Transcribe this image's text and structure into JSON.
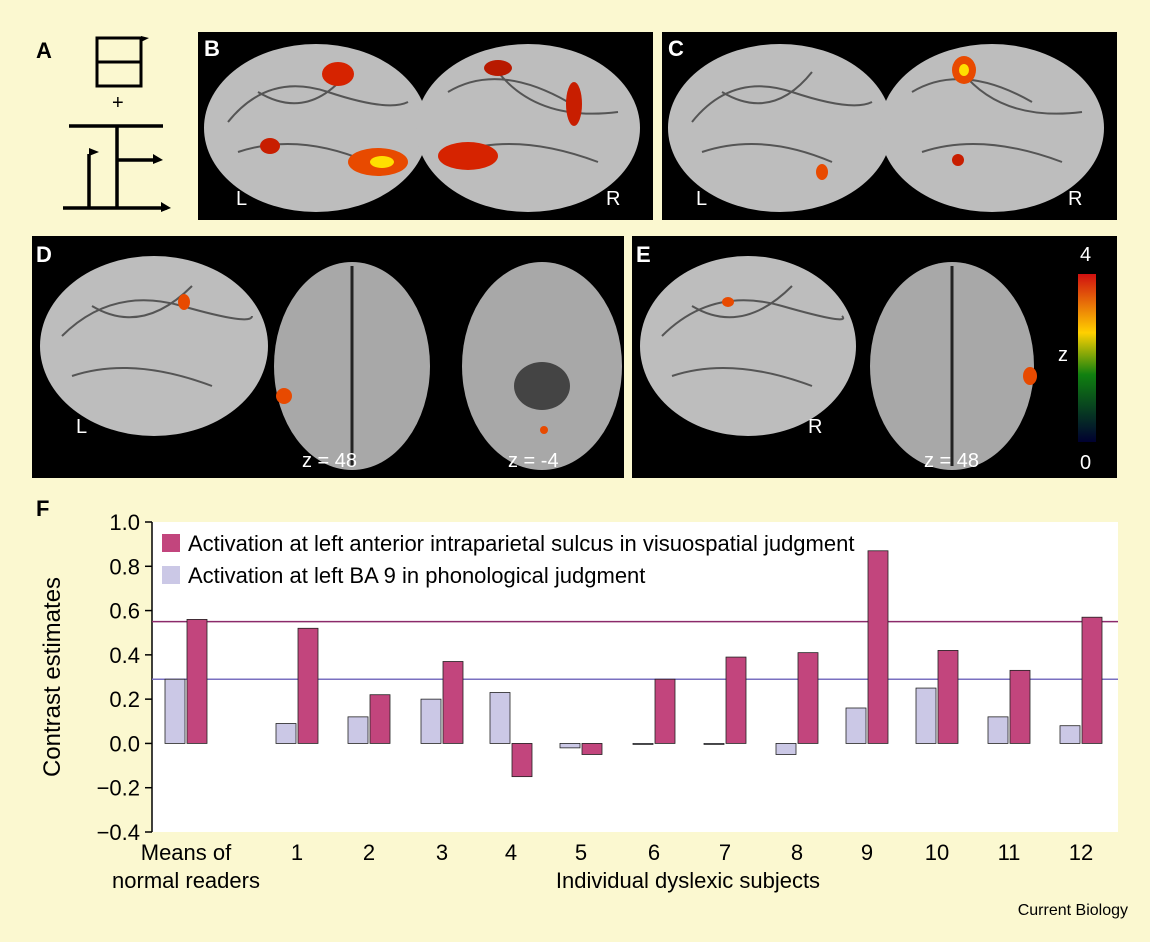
{
  "panels": {
    "a": {
      "letter": "A",
      "plus": "+"
    },
    "b": {
      "letter": "B",
      "left_label": "L",
      "right_label": "R"
    },
    "c": {
      "letter": "C",
      "left_label": "L",
      "right_label": "R"
    },
    "d": {
      "letter": "D",
      "left_label": "L",
      "slice1": "z = 48",
      "slice2": "z = -4"
    },
    "e": {
      "letter": "E",
      "right_label": "R",
      "slice1": "z = 48",
      "colorbar": {
        "max": "4",
        "min": "0",
        "label": "z"
      }
    },
    "f": {
      "letter": "F"
    }
  },
  "credit": "Current Biology",
  "colors": {
    "series_visuospatial": "#c2457d",
    "series_phonological": "#cbc8e6",
    "ref_line_visuospatial": "#8b2a6a",
    "ref_line_phonological": "#7a70c0",
    "background": "#fbf8d0"
  },
  "chart_data": {
    "type": "bar",
    "categories": [
      "Means of\nnormal readers",
      "1",
      "2",
      "3",
      "4",
      "5",
      "6",
      "7",
      "8",
      "9",
      "10",
      "11",
      "12"
    ],
    "xlabel": "Individual dyslexic subjects",
    "ylabel": "Contrast estimates",
    "ylim": [
      -0.4,
      1.0
    ],
    "yticks": [
      "1.0",
      "0.8",
      "0.6",
      "0.4",
      "0.2",
      "0.0",
      "−0.2",
      "−0.4"
    ],
    "ytick_values": [
      1.0,
      0.8,
      0.6,
      0.4,
      0.2,
      0.0,
      -0.2,
      -0.4
    ],
    "legend_position": "top-left",
    "series": [
      {
        "name": "Activation at left BA 9 in phonological judgment",
        "values": [
          0.29,
          0.09,
          0.12,
          0.2,
          0.23,
          -0.02,
          0.0,
          0.0,
          -0.05,
          0.16,
          0.25,
          0.12,
          0.08
        ]
      },
      {
        "name": "Activation at left anterior intraparietal sulcus in visuospatial judgment",
        "values": [
          0.56,
          0.52,
          0.22,
          0.37,
          -0.15,
          -0.05,
          0.29,
          0.39,
          0.41,
          0.87,
          0.42,
          0.33,
          0.57
        ]
      }
    ],
    "reference_lines": [
      0.55,
      0.29
    ]
  }
}
